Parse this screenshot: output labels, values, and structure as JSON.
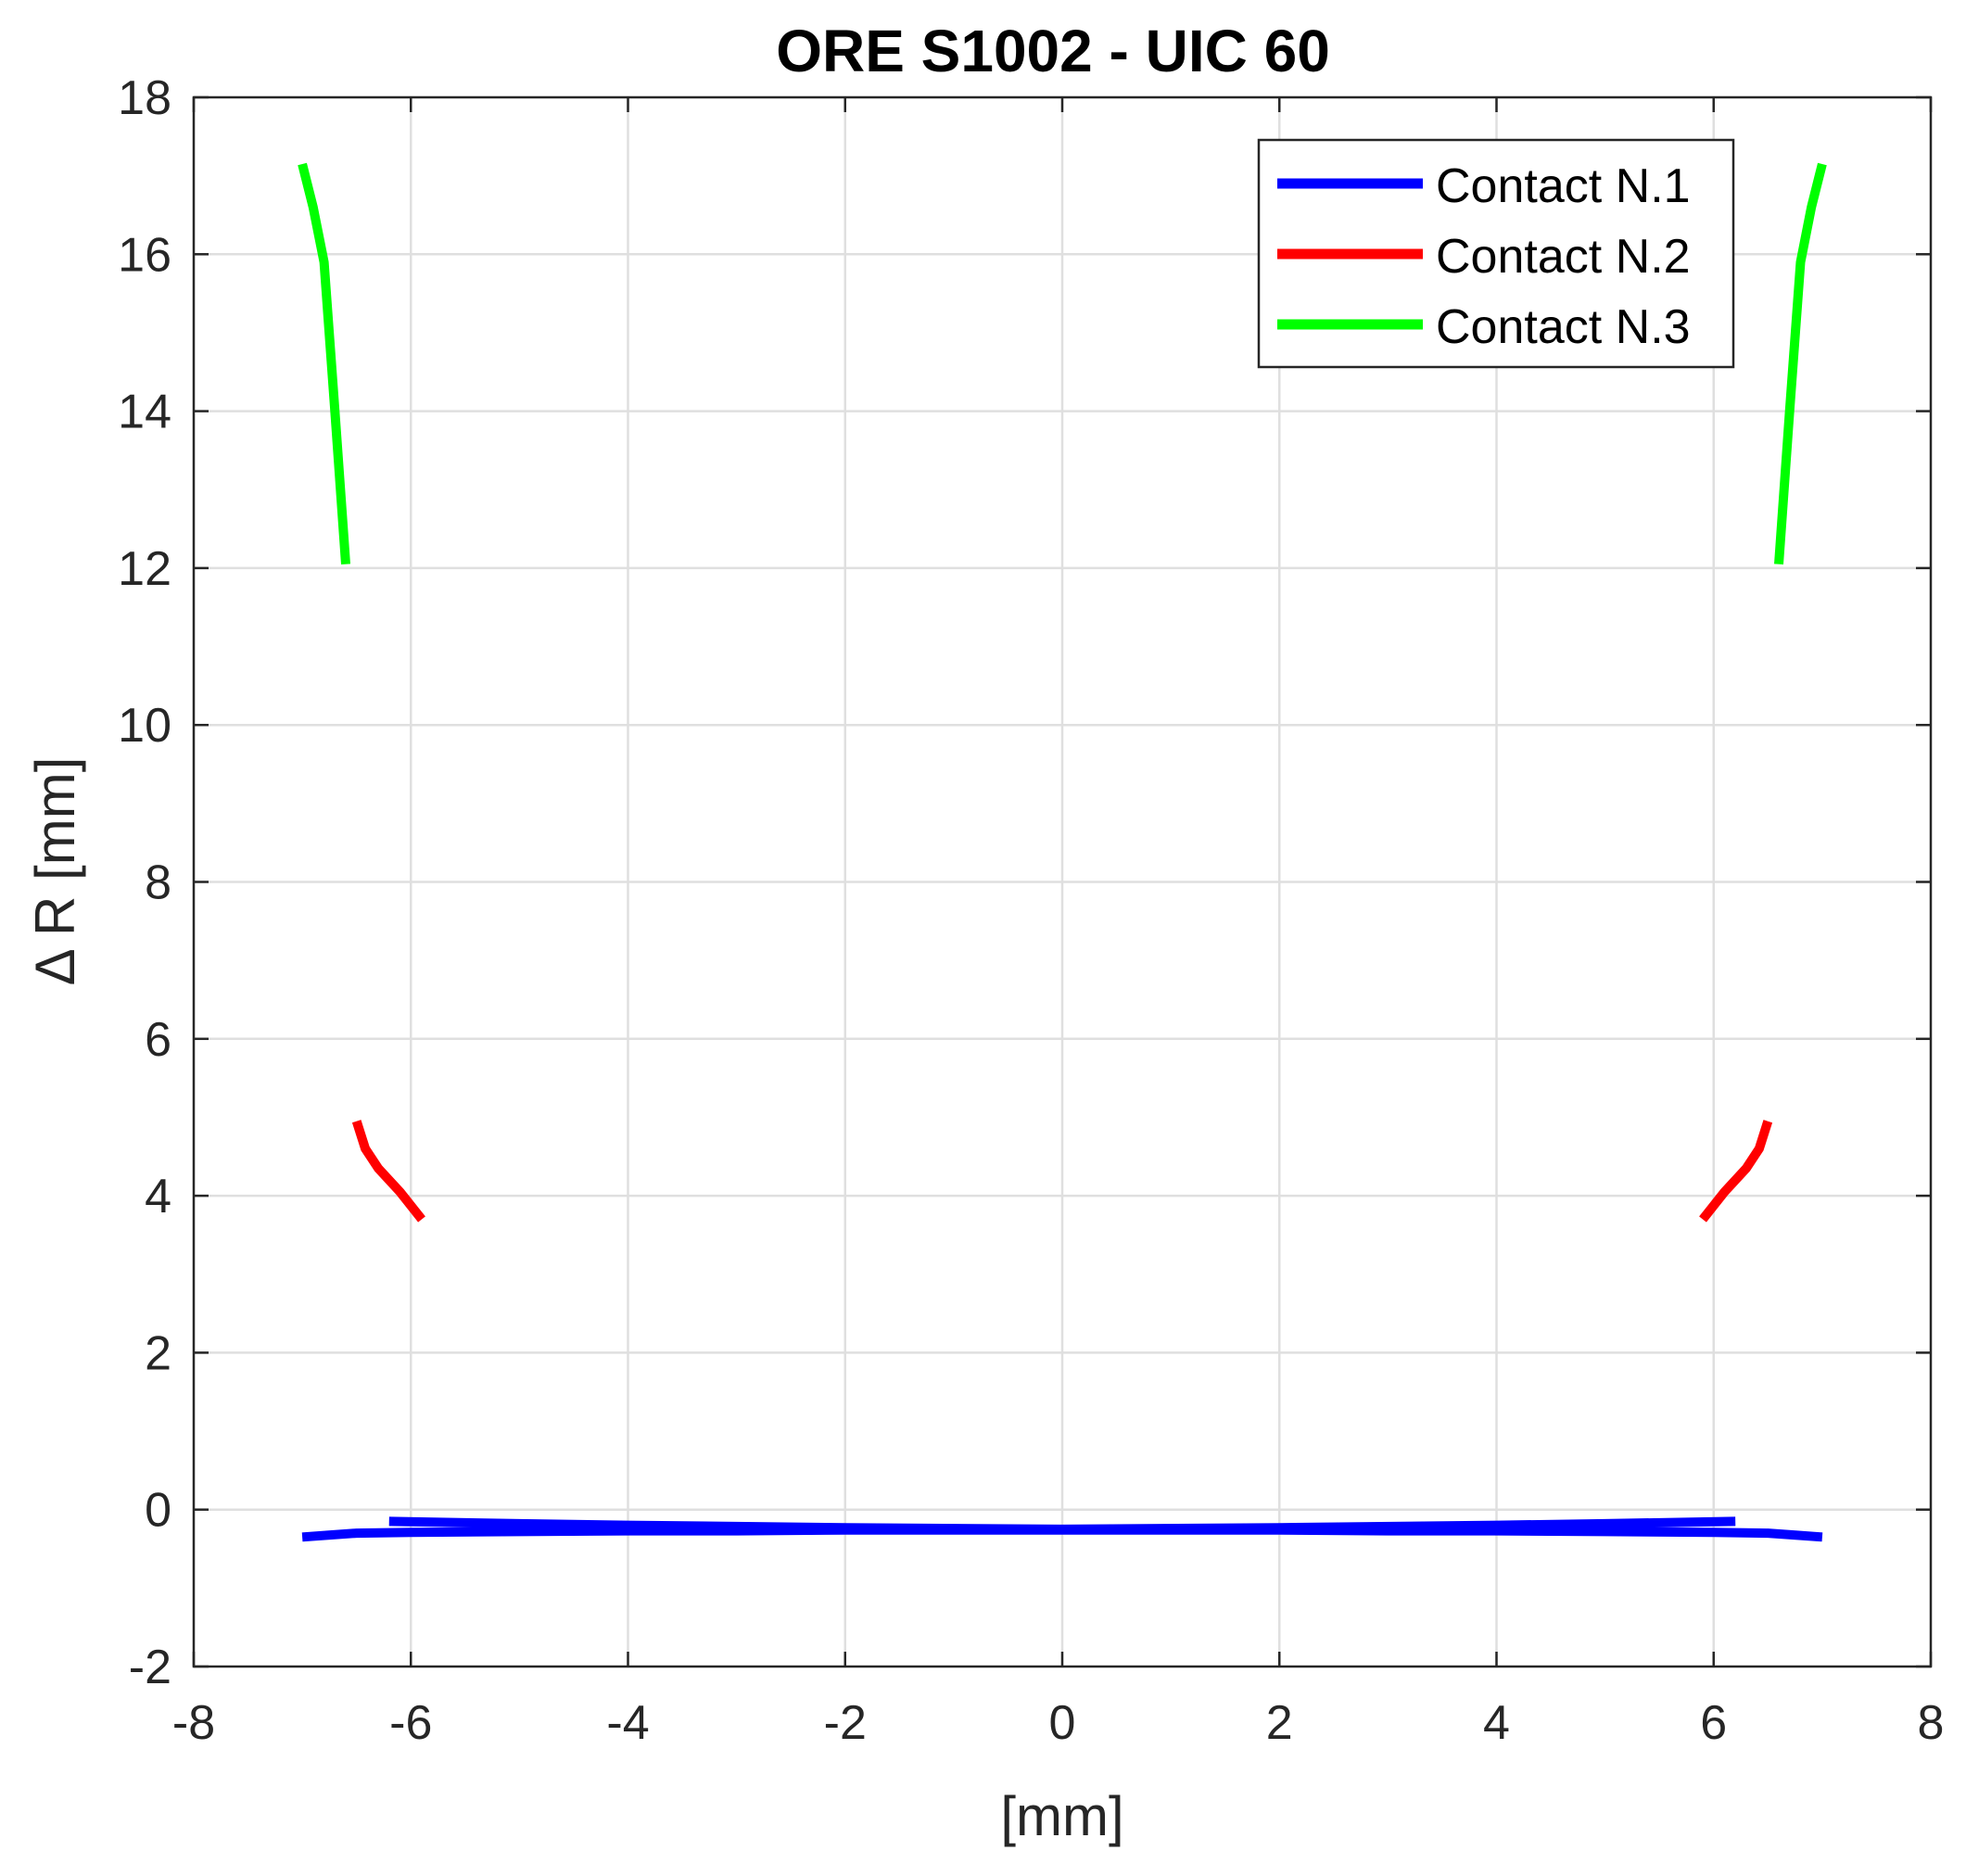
{
  "chart_data": {
    "type": "line",
    "title": "ORE S1002 - UIC 60",
    "xlabel": "[mm]",
    "ylabel": "Δ R [mm]",
    "xlim": [
      -8,
      8
    ],
    "ylim": [
      -2,
      18
    ],
    "xticks": [
      -8,
      -6,
      -4,
      -2,
      0,
      2,
      4,
      6,
      8
    ],
    "yticks": [
      -2,
      0,
      2,
      4,
      6,
      8,
      10,
      12,
      14,
      16,
      18
    ],
    "grid": true,
    "legend_position": "top-right",
    "series": [
      {
        "name": "Contact N.1",
        "color": "#0000ff",
        "segments": [
          {
            "x": [
              -7.0,
              -6.5,
              -6.0,
              -5.0,
              -4.0,
              -3.0,
              -2.0,
              -1.0,
              0.0,
              1.0,
              2.0,
              3.0,
              4.0,
              5.0,
              6.0,
              6.5,
              7.0
            ],
            "y": [
              -0.35,
              -0.3,
              -0.29,
              -0.28,
              -0.27,
              -0.27,
              -0.26,
              -0.26,
              -0.26,
              -0.26,
              -0.26,
              -0.27,
              -0.27,
              -0.28,
              -0.29,
              -0.3,
              -0.35
            ]
          },
          {
            "x": [
              -6.2,
              -5.0,
              -4.0,
              -2.0,
              0.0,
              2.0,
              4.0,
              5.0,
              6.2
            ],
            "y": [
              -0.15,
              -0.18,
              -0.2,
              -0.23,
              -0.25,
              -0.23,
              -0.2,
              -0.18,
              -0.15
            ]
          }
        ]
      },
      {
        "name": "Contact N.2",
        "color": "#ff0000",
        "segments": [
          {
            "x": [
              -6.5,
              -6.42,
              -6.3,
              -6.1,
              -5.9
            ],
            "y": [
              4.95,
              4.6,
              4.35,
              4.05,
              3.7
            ]
          },
          {
            "x": [
              5.9,
              6.1,
              6.3,
              6.42,
              6.5
            ],
            "y": [
              3.7,
              4.05,
              4.35,
              4.6,
              4.95
            ]
          }
        ]
      },
      {
        "name": "Contact N.3",
        "color": "#00ff00",
        "segments": [
          {
            "x": [
              -7.0,
              -6.9,
              -6.8,
              -6.7,
              -6.6
            ],
            "y": [
              17.15,
              16.6,
              15.9,
              14.0,
              12.05
            ]
          },
          {
            "x": [
              6.6,
              6.7,
              6.8,
              6.9,
              7.0
            ],
            "y": [
              12.05,
              14.0,
              15.9,
              16.6,
              17.15
            ]
          }
        ]
      }
    ]
  }
}
